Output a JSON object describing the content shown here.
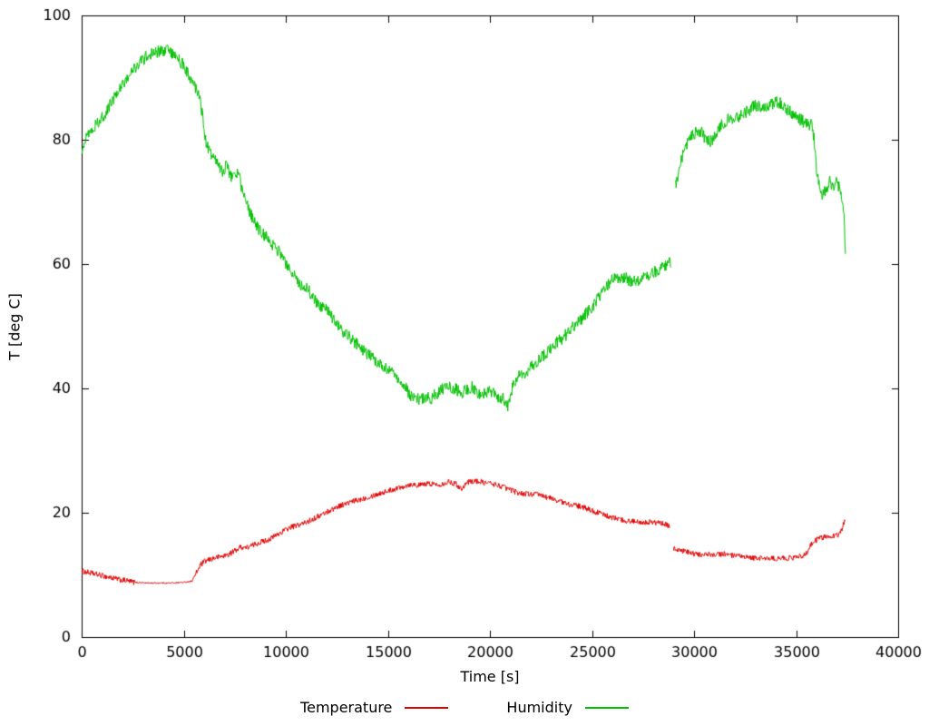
{
  "figure": {
    "background": "#ffffff"
  },
  "chart_data": {
    "type": "line",
    "title": "",
    "xlabel": "Time [s]",
    "ylabel": "T [deg C]",
    "xlim": [
      0,
      40000
    ],
    "ylim": [
      0,
      100
    ],
    "xticks": [
      0,
      5000,
      10000,
      15000,
      20000,
      25000,
      30000,
      35000,
      40000
    ],
    "yticks": [
      0,
      20,
      40,
      60,
      80,
      100
    ],
    "grid": false,
    "legend_position": "below",
    "axis_color": "#000000",
    "series": [
      {
        "name": "Temperature",
        "color": "#e00000",
        "noise": 0.45,
        "segments": [
          [
            [
              0,
              10.6
            ],
            [
              300,
              10.4
            ],
            [
              700,
              10.1
            ],
            [
              1100,
              9.8
            ],
            [
              1500,
              9.5
            ],
            [
              1900,
              9.2
            ],
            [
              2300,
              9.0
            ],
            [
              2600,
              8.8,
              0.25
            ],
            [
              3200,
              8.7,
              0.25
            ],
            [
              3800,
              8.7,
              0.25
            ],
            [
              4400,
              8.7,
              0.25
            ],
            [
              5000,
              8.8,
              0.25
            ],
            [
              5400,
              9.0,
              0.4
            ],
            [
              5600,
              10.2,
              1
            ],
            [
              5800,
              11.5
            ],
            [
              6000,
              12.1
            ],
            [
              6300,
              12.5
            ],
            [
              6600,
              12.8
            ],
            [
              6900,
              13.0
            ],
            [
              7200,
              13.3
            ],
            [
              7500,
              13.9
            ],
            [
              7800,
              14.5
            ],
            [
              8100,
              14.4
            ],
            [
              8400,
              14.8
            ],
            [
              8700,
              15.2
            ],
            [
              9000,
              15.5
            ],
            [
              9300,
              15.9
            ],
            [
              9600,
              16.5
            ],
            [
              9900,
              17.1
            ],
            [
              10200,
              17.6
            ],
            [
              10500,
              17.9
            ],
            [
              10800,
              18.2
            ],
            [
              11100,
              18.6
            ],
            [
              11400,
              19.1
            ],
            [
              11700,
              19.6
            ],
            [
              12000,
              20.1
            ],
            [
              12300,
              20.6
            ],
            [
              12600,
              21.1
            ],
            [
              12900,
              21.4
            ],
            [
              13200,
              21.7
            ],
            [
              13500,
              22.0
            ],
            [
              13800,
              22.3
            ],
            [
              14100,
              22.6
            ],
            [
              14400,
              22.9
            ],
            [
              14700,
              23.2
            ],
            [
              15000,
              23.5
            ],
            [
              15300,
              23.8
            ],
            [
              15600,
              24.1
            ],
            [
              15900,
              24.4
            ],
            [
              16200,
              24.6
            ],
            [
              16500,
              24.4
            ],
            [
              16800,
              24.6
            ],
            [
              17100,
              24.7
            ],
            [
              17400,
              24.5
            ],
            [
              17700,
              24.7
            ],
            [
              18000,
              25.0
            ],
            [
              18300,
              24.7
            ],
            [
              18600,
              23.9
            ],
            [
              18900,
              24.9
            ],
            [
              19200,
              25.1
            ],
            [
              19500,
              25.0
            ],
            [
              19800,
              24.8
            ],
            [
              20100,
              24.7
            ],
            [
              20400,
              24.4
            ],
            [
              20700,
              24.1
            ],
            [
              21000,
              23.7
            ],
            [
              21300,
              23.3
            ],
            [
              21600,
              23.1
            ],
            [
              21900,
              23.0
            ],
            [
              22200,
              23.0
            ],
            [
              22500,
              22.8
            ],
            [
              22800,
              22.5
            ],
            [
              23100,
              22.2
            ],
            [
              23400,
              21.9
            ],
            [
              23700,
              21.5
            ],
            [
              24000,
              21.3
            ],
            [
              24300,
              21.1
            ],
            [
              24600,
              20.8
            ],
            [
              24900,
              20.5
            ],
            [
              25200,
              20.1
            ],
            [
              25500,
              19.8
            ],
            [
              25800,
              19.4
            ],
            [
              26100,
              19.1
            ],
            [
              26400,
              18.9
            ],
            [
              26700,
              18.7
            ],
            [
              27000,
              18.6
            ],
            [
              27300,
              18.6
            ],
            [
              27600,
              18.5
            ],
            [
              27900,
              18.5
            ],
            [
              28200,
              18.4
            ],
            [
              28500,
              18.2
            ],
            [
              28800,
              17.9
            ]
          ],
          [
            [
              29000,
              14.3
            ],
            [
              29300,
              14.0
            ],
            [
              29600,
              13.7
            ],
            [
              29900,
              13.4
            ],
            [
              30200,
              13.3
            ],
            [
              30500,
              13.2
            ],
            [
              30800,
              13.3
            ],
            [
              31100,
              13.3
            ],
            [
              31400,
              13.4
            ],
            [
              31700,
              13.2
            ],
            [
              32000,
              13.0
            ],
            [
              32300,
              12.9
            ],
            [
              32600,
              12.8
            ],
            [
              32900,
              12.7
            ],
            [
              33200,
              12.7
            ],
            [
              33500,
              12.7
            ],
            [
              33800,
              12.6
            ],
            [
              34100,
              12.6
            ],
            [
              34400,
              12.7
            ],
            [
              34700,
              12.7
            ],
            [
              35000,
              12.8
            ],
            [
              35300,
              13.1
            ],
            [
              35500,
              13.5
            ],
            [
              35700,
              14.7
            ],
            [
              35900,
              15.4
            ],
            [
              36100,
              15.8
            ],
            [
              36300,
              16.0
            ],
            [
              36500,
              16.2
            ],
            [
              36700,
              16.3
            ],
            [
              36900,
              16.3
            ],
            [
              37100,
              16.5
            ],
            [
              37250,
              17.3
            ],
            [
              37400,
              19.0
            ]
          ]
        ]
      },
      {
        "name": "Humidity",
        "color": "#00c000",
        "noise": 1.0,
        "segments": [
          [
            [
              0,
              78.5
            ],
            [
              200,
              80.6
            ],
            [
              500,
              81.8
            ],
            [
              800,
              82.8
            ],
            [
              1100,
              84.0
            ],
            [
              1400,
              85.6
            ],
            [
              1700,
              87.2
            ],
            [
              2000,
              88.8
            ],
            [
              2300,
              90.3
            ],
            [
              2600,
              91.6
            ],
            [
              2900,
              92.7
            ],
            [
              3200,
              93.4
            ],
            [
              3500,
              93.9
            ],
            [
              3800,
              94.3
            ],
            [
              4100,
              94.4
            ],
            [
              4400,
              94.1
            ],
            [
              4700,
              93.3
            ],
            [
              5000,
              91.8
            ],
            [
              5300,
              90.0
            ],
            [
              5600,
              88.0
            ],
            [
              5800,
              86.5
            ],
            [
              5950,
              83.0
            ],
            [
              6100,
              79.5
            ],
            [
              6300,
              78.0
            ],
            [
              6600,
              76.5
            ],
            [
              6900,
              75.0
            ],
            [
              7100,
              75.8
            ],
            [
              7300,
              74.0
            ],
            [
              7500,
              74.8
            ],
            [
              7700,
              74.3
            ],
            [
              7900,
              71.5
            ],
            [
              8100,
              69.5
            ],
            [
              8400,
              67.3
            ],
            [
              8700,
              65.5
            ],
            [
              9000,
              64.5
            ],
            [
              9300,
              63.4
            ],
            [
              9600,
              62.2
            ],
            [
              9900,
              60.7
            ],
            [
              10200,
              59.0
            ],
            [
              10500,
              57.6
            ],
            [
              10800,
              56.6
            ],
            [
              11100,
              55.8
            ],
            [
              11400,
              54.4
            ],
            [
              11700,
              53.2
            ],
            [
              12000,
              52.6
            ],
            [
              12300,
              51.4
            ],
            [
              12600,
              49.9
            ],
            [
              12900,
              48.9
            ],
            [
              13200,
              48.0
            ],
            [
              13500,
              47.0
            ],
            [
              13800,
              46.1
            ],
            [
              14100,
              45.3
            ],
            [
              14400,
              44.3
            ],
            [
              14700,
              43.7
            ],
            [
              15000,
              43.1
            ],
            [
              15300,
              42.1
            ],
            [
              15600,
              41.2
            ],
            [
              15900,
              39.9
            ],
            [
              16200,
              38.6
            ],
            [
              16500,
              38.3
            ],
            [
              16800,
              38.5
            ],
            [
              17100,
              38.4
            ],
            [
              17400,
              39.2
            ],
            [
              17700,
              40.0
            ],
            [
              18000,
              40.4
            ],
            [
              18300,
              39.9
            ],
            [
              18600,
              39.3
            ],
            [
              18900,
              40.0
            ],
            [
              19200,
              40.2
            ],
            [
              19500,
              38.8
            ],
            [
              19800,
              39.4
            ],
            [
              20100,
              39.6
            ],
            [
              20400,
              38.7
            ],
            [
              20700,
              38.3
            ],
            [
              20900,
              37.2
            ],
            [
              21050,
              39.5
            ],
            [
              21200,
              41.2
            ],
            [
              21500,
              42.1
            ],
            [
              21800,
              42.8
            ],
            [
              22100,
              43.6
            ],
            [
              22400,
              44.6
            ],
            [
              22700,
              45.5
            ],
            [
              23000,
              46.5
            ],
            [
              23300,
              47.4
            ],
            [
              23600,
              48.2
            ],
            [
              23900,
              49.2
            ],
            [
              24200,
              50.3
            ],
            [
              24500,
              51.3
            ],
            [
              24800,
              52.4
            ],
            [
              25100,
              53.6
            ],
            [
              25400,
              55.0
            ],
            [
              25700,
              56.3
            ],
            [
              26000,
              57.4
            ],
            [
              26300,
              57.9
            ],
            [
              26600,
              57.9
            ],
            [
              26900,
              57.2
            ],
            [
              27200,
              57.1
            ],
            [
              27500,
              57.6
            ],
            [
              27800,
              58.2
            ],
            [
              28100,
              58.8
            ],
            [
              28400,
              59.4
            ],
            [
              28700,
              60.0
            ],
            [
              28850,
              60.3
            ]
          ],
          [
            [
              29100,
              72.5
            ],
            [
              29250,
              75.0
            ],
            [
              29450,
              77.5
            ],
            [
              29700,
              79.5
            ],
            [
              30000,
              81.0
            ],
            [
              30200,
              81.6
            ],
            [
              30400,
              81.0
            ],
            [
              30600,
              79.8
            ],
            [
              30800,
              79.6
            ],
            [
              31000,
              80.4
            ],
            [
              31200,
              81.6
            ],
            [
              31400,
              82.6
            ],
            [
              31600,
              83.2
            ],
            [
              31800,
              83.3
            ],
            [
              32000,
              83.2
            ],
            [
              32200,
              83.8
            ],
            [
              32400,
              84.3
            ],
            [
              32600,
              84.5
            ],
            [
              32800,
              85.0
            ],
            [
              33000,
              85.6
            ],
            [
              33200,
              85.3
            ],
            [
              33400,
              85.0
            ],
            [
              33600,
              85.3
            ],
            [
              33800,
              85.8
            ],
            [
              34000,
              86.0
            ],
            [
              34200,
              85.9
            ],
            [
              34400,
              85.2
            ],
            [
              34600,
              84.7
            ],
            [
              34800,
              84.3
            ],
            [
              35000,
              84.0
            ],
            [
              35200,
              83.3
            ],
            [
              35400,
              82.8
            ],
            [
              35600,
              82.5
            ],
            [
              35800,
              82.3
            ],
            [
              35900,
              79.5
            ],
            [
              36000,
              75.5
            ],
            [
              36100,
              72.8
            ],
            [
              36250,
              71.2
            ],
            [
              36450,
              71.8
            ],
            [
              36650,
              73.2
            ],
            [
              36850,
              72.4
            ],
            [
              37000,
              73.4
            ],
            [
              37150,
              71.8
            ],
            [
              37300,
              70.3
            ],
            [
              37420,
              62.3
            ]
          ]
        ]
      }
    ]
  }
}
